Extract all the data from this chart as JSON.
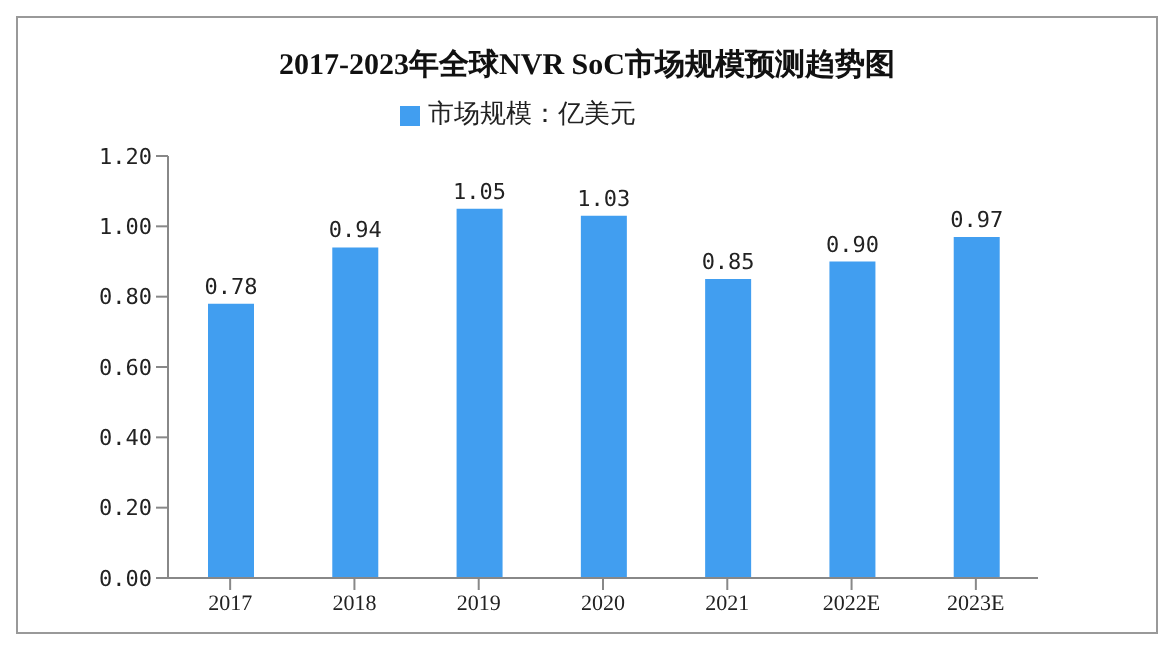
{
  "chart_data": {
    "type": "bar",
    "title": "2017-2023年全球NVR SoC市场规模预测趋势图",
    "categories": [
      "2017",
      "2018",
      "2019",
      "2020",
      "2021",
      "2022E",
      "2023E"
    ],
    "series": [
      {
        "name": "市场规模：亿美元",
        "color": "#419ef0",
        "values": [
          0.78,
          0.94,
          1.05,
          1.03,
          0.85,
          0.9,
          0.97
        ]
      }
    ],
    "ylim": [
      0,
      1.2
    ],
    "yticks": [
      {
        "value": 0,
        "label": "0.00"
      },
      {
        "value": 0.2,
        "label": "0.20"
      },
      {
        "value": 0.4,
        "label": "0.40"
      },
      {
        "value": 0.6,
        "label": "0.60"
      },
      {
        "value": 0.8,
        "label": "0.80"
      },
      {
        "value": 1,
        "label": "1.00"
      },
      {
        "value": 1.2,
        "label": "1.20"
      }
    ],
    "value_labels": [
      "0.78",
      "0.94",
      "1.05",
      "1.03",
      "0.85",
      "0.90",
      "0.97"
    ],
    "grid": false,
    "legend": "top"
  }
}
